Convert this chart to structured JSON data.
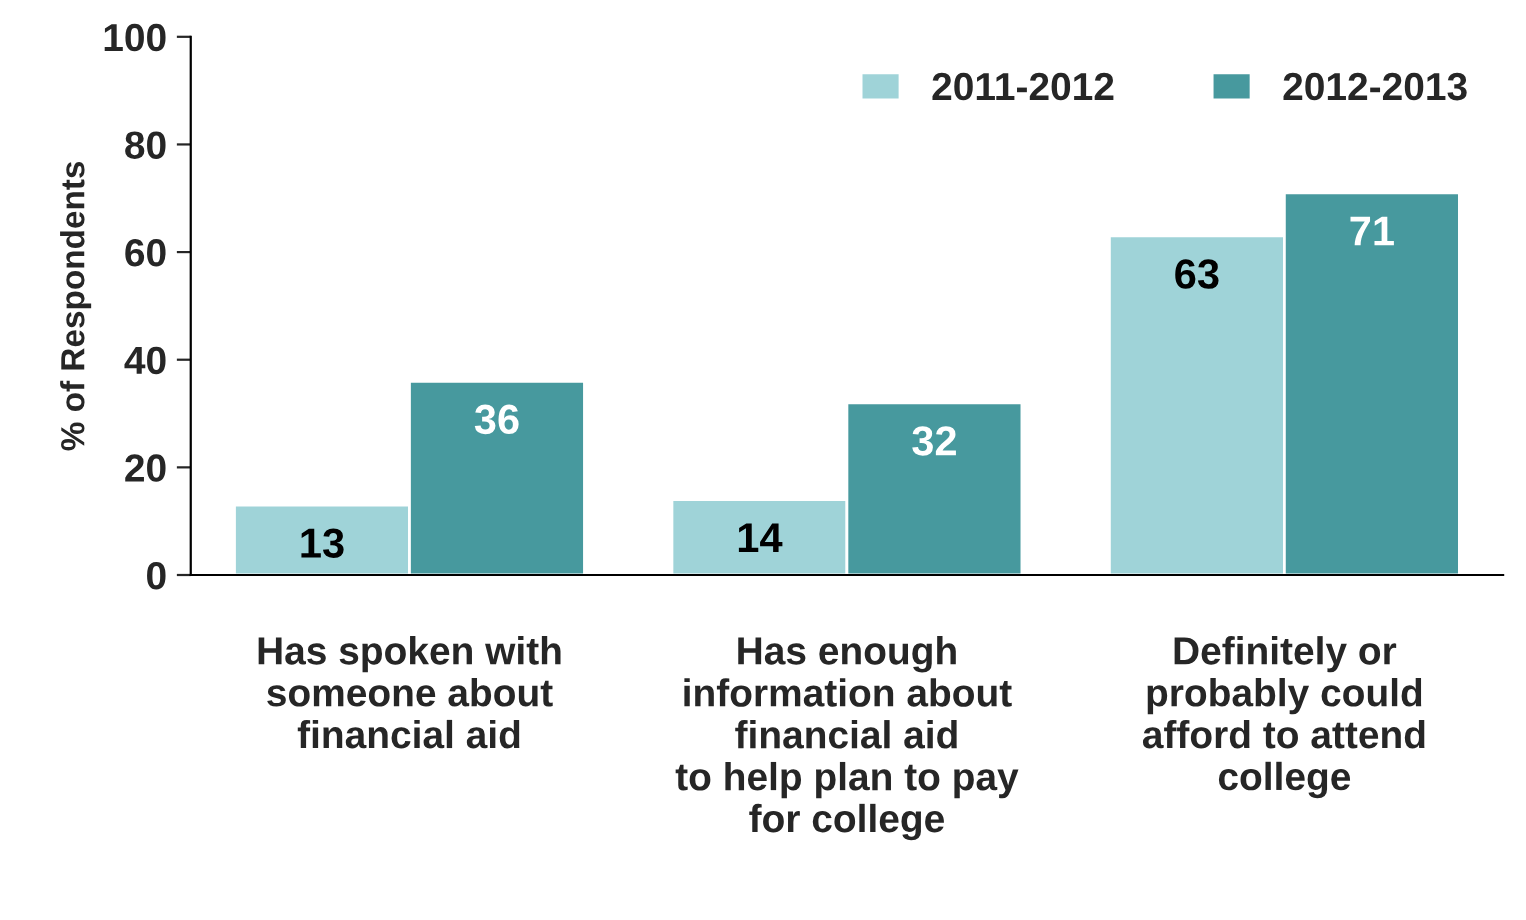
{
  "chart_data": {
    "type": "bar",
    "ylabel": "% of Respondents",
    "categories": [
      "Has spoken with\nsomeone about\nfinancial aid",
      "Has enough\ninformation about\nfinancial aid\nto help plan to pay\nfor college",
      "Definitely or\nprobably could\nafford to attend\ncollege"
    ],
    "series": [
      {
        "name": "2011-2012",
        "color": "#9fd3d8",
        "values": [
          13,
          14,
          63
        ]
      },
      {
        "name": "2012-2013",
        "color": "#47999e",
        "values": [
          36,
          32,
          71
        ]
      }
    ],
    "ylim": [
      0,
      100
    ],
    "yticks": [
      0,
      20,
      40,
      60,
      80,
      100
    ],
    "data_labels": true,
    "legend": "top right",
    "grid": false
  }
}
